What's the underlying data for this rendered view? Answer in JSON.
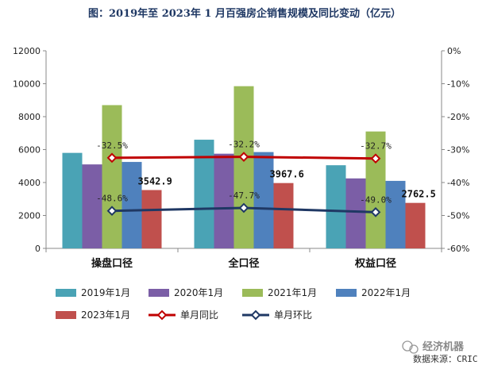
{
  "chart_data": {
    "type": "bar",
    "title": "图：2019年至 2023年 1 月百强房企销售规模及同比变动（亿元）",
    "categories": [
      "操盘口径",
      "全口径",
      "权益口径"
    ],
    "series": [
      {
        "name": "2019年1月",
        "values": [
          5800,
          6600,
          5050
        ],
        "color": "#4aa3b5"
      },
      {
        "name": "2020年1月",
        "values": [
          5100,
          5750,
          4250
        ],
        "color": "#7b5ea6"
      },
      {
        "name": "2021年1月",
        "values": [
          8700,
          9850,
          7100
        ],
        "color": "#9bbb59"
      },
      {
        "name": "2022年1月",
        "values": [
          5250,
          5850,
          4100
        ],
        "color": "#4f81bd"
      },
      {
        "name": "2023年1月",
        "values": [
          3542.9,
          3967.6,
          2762.5
        ],
        "color": "#c0504d"
      }
    ],
    "bar_labels": [
      "3542.9",
      "3967.6",
      "2762.5"
    ],
    "line_series": [
      {
        "name": "单月同比",
        "values": [
          -32.5,
          -32.2,
          -32.7
        ],
        "labels": [
          "-32.5%",
          "-32.2%",
          "-32.7%"
        ],
        "color": "#c00000"
      },
      {
        "name": "单月环比",
        "values": [
          -48.6,
          -47.7,
          -49.0
        ],
        "labels": [
          "-48.6%",
          "-47.7%",
          "-49.0%"
        ],
        "color": "#1f3864"
      }
    ],
    "y_left": {
      "min": 0,
      "max": 12000,
      "step": 2000,
      "ticks": [
        "0",
        "2000",
        "4000",
        "6000",
        "8000",
        "10000",
        "12000"
      ]
    },
    "y_right": {
      "min": -60,
      "max": 0,
      "step": 10,
      "ticks": [
        "-60%",
        "-50%",
        "-40%",
        "-30%",
        "-20%",
        "-10%",
        "0%"
      ]
    },
    "grid": false,
    "legend_position": "bottom"
  },
  "watermark": "经济机器",
  "source": "数据来源：CRIC"
}
